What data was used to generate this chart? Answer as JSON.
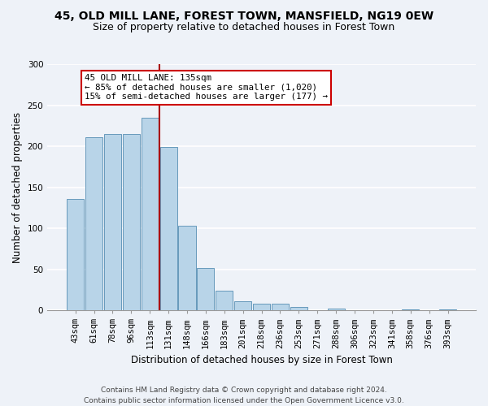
{
  "title": "45, OLD MILL LANE, FOREST TOWN, MANSFIELD, NG19 0EW",
  "subtitle": "Size of property relative to detached houses in Forest Town",
  "xlabel": "Distribution of detached houses by size in Forest Town",
  "ylabel": "Number of detached properties",
  "bar_labels": [
    "43sqm",
    "61sqm",
    "78sqm",
    "96sqm",
    "113sqm",
    "131sqm",
    "148sqm",
    "166sqm",
    "183sqm",
    "201sqm",
    "218sqm",
    "236sqm",
    "253sqm",
    "271sqm",
    "288sqm",
    "306sqm",
    "323sqm",
    "341sqm",
    "358sqm",
    "376sqm",
    "393sqm"
  ],
  "bar_values": [
    136,
    211,
    215,
    215,
    235,
    199,
    103,
    52,
    24,
    11,
    8,
    8,
    4,
    0,
    2,
    0,
    0,
    0,
    1,
    0,
    1
  ],
  "bar_color": "#b8d4e8",
  "bar_edge_color": "#6699bb",
  "vline_color": "#aa0000",
  "vline_index": 5,
  "ylim": [
    0,
    300
  ],
  "yticks": [
    0,
    50,
    100,
    150,
    200,
    250,
    300
  ],
  "annotation_title": "45 OLD MILL LANE: 135sqm",
  "annotation_line1": "← 85% of detached houses are smaller (1,020)",
  "annotation_line2": "15% of semi-detached houses are larger (177) →",
  "annotation_box_facecolor": "#ffffff",
  "annotation_box_edgecolor": "#cc0000",
  "footer_line1": "Contains HM Land Registry data © Crown copyright and database right 2024.",
  "footer_line2": "Contains public sector information licensed under the Open Government Licence v3.0.",
  "bg_color": "#eef2f8",
  "grid_color": "#ffffff",
  "title_fontsize": 10,
  "subtitle_fontsize": 9,
  "tick_fontsize": 7.5,
  "ylabel_fontsize": 8.5,
  "xlabel_fontsize": 8.5
}
